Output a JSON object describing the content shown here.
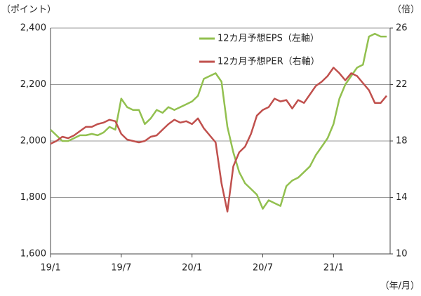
{
  "chart_data": {
    "type": "line",
    "y_label": "（ポイント）",
    "y2_label": "（倍）",
    "x_label": "（年/月）",
    "x": [
      0,
      0.5,
      1,
      1.5,
      2,
      2.5,
      3,
      3.5,
      4,
      4.5,
      5,
      5.5,
      6,
      6.5,
      7,
      7.5,
      8,
      8.5,
      9,
      9.5,
      10,
      10.5,
      11,
      11.5,
      12,
      12.5,
      13,
      13.5,
      14,
      14.5,
      15,
      15.5,
      16,
      16.5,
      17,
      17.5,
      18,
      18.5,
      19,
      19.5,
      20,
      20.5,
      21,
      21.5,
      22,
      22.5,
      23,
      23.5,
      24,
      24.5,
      25,
      25.5,
      26,
      26.5,
      27,
      27.5,
      28,
      28.5
    ],
    "xlim": [
      0,
      28.8
    ],
    "xticks": [
      {
        "value": 0,
        "label": "19/1"
      },
      {
        "value": 6,
        "label": "19/7"
      },
      {
        "value": 12,
        "label": "20/1"
      },
      {
        "value": 18,
        "label": "20/7"
      },
      {
        "value": 24,
        "label": "21/1"
      }
    ],
    "ylim": [
      1600,
      2400
    ],
    "yticks": [
      {
        "value": 1600,
        "label": "1,600"
      },
      {
        "value": 1800,
        "label": "1,800"
      },
      {
        "value": 2000,
        "label": "2,000"
      },
      {
        "value": 2200,
        "label": "2,200"
      },
      {
        "value": 2400,
        "label": "2,400"
      }
    ],
    "y2lim": [
      10,
      26
    ],
    "y2ticks": [
      10,
      14,
      18,
      22,
      26
    ],
    "grid": true,
    "legend": "upper center",
    "series": [
      {
        "name": "12カ月予想EPS（左軸）",
        "color": "#92c04f",
        "values": [
          2040,
          2020,
          2000,
          2000,
          2010,
          2020,
          2020,
          2025,
          2020,
          2030,
          2050,
          2040,
          2150,
          2120,
          2110,
          2110,
          2060,
          2080,
          2110,
          2100,
          2120,
          2110,
          2120,
          2130,
          2140,
          2160,
          2220,
          2230,
          2240,
          2210,
          2050,
          1960,
          1890,
          1850,
          1830,
          1810,
          1760,
          1790,
          1780,
          1770,
          1840,
          1860,
          1870,
          1890,
          1910,
          1950,
          1980,
          2010,
          2060,
          2150,
          2200,
          2230,
          2260,
          2270,
          2370,
          2380,
          2370,
          2370
        ]
      },
      {
        "name": "12カ月予想PER（右軸）",
        "color": "#c0504d",
        "axis": "y2",
        "values": [
          17.8,
          18.0,
          18.3,
          18.2,
          18.4,
          18.7,
          19.0,
          19.0,
          19.2,
          19.3,
          19.5,
          19.4,
          18.5,
          18.1,
          18.0,
          17.9,
          18.0,
          18.3,
          18.4,
          18.8,
          19.2,
          19.5,
          19.3,
          19.4,
          19.2,
          19.6,
          18.9,
          18.4,
          17.9,
          15.0,
          13.0,
          16.2,
          17.2,
          17.6,
          18.5,
          19.8,
          20.2,
          20.4,
          21.0,
          20.8,
          20.9,
          20.3,
          20.9,
          20.7,
          21.3,
          21.9,
          22.2,
          22.6,
          23.2,
          22.8,
          22.3,
          22.8,
          22.6,
          22.1,
          21.6,
          20.7,
          20.7,
          21.2
        ]
      }
    ]
  }
}
